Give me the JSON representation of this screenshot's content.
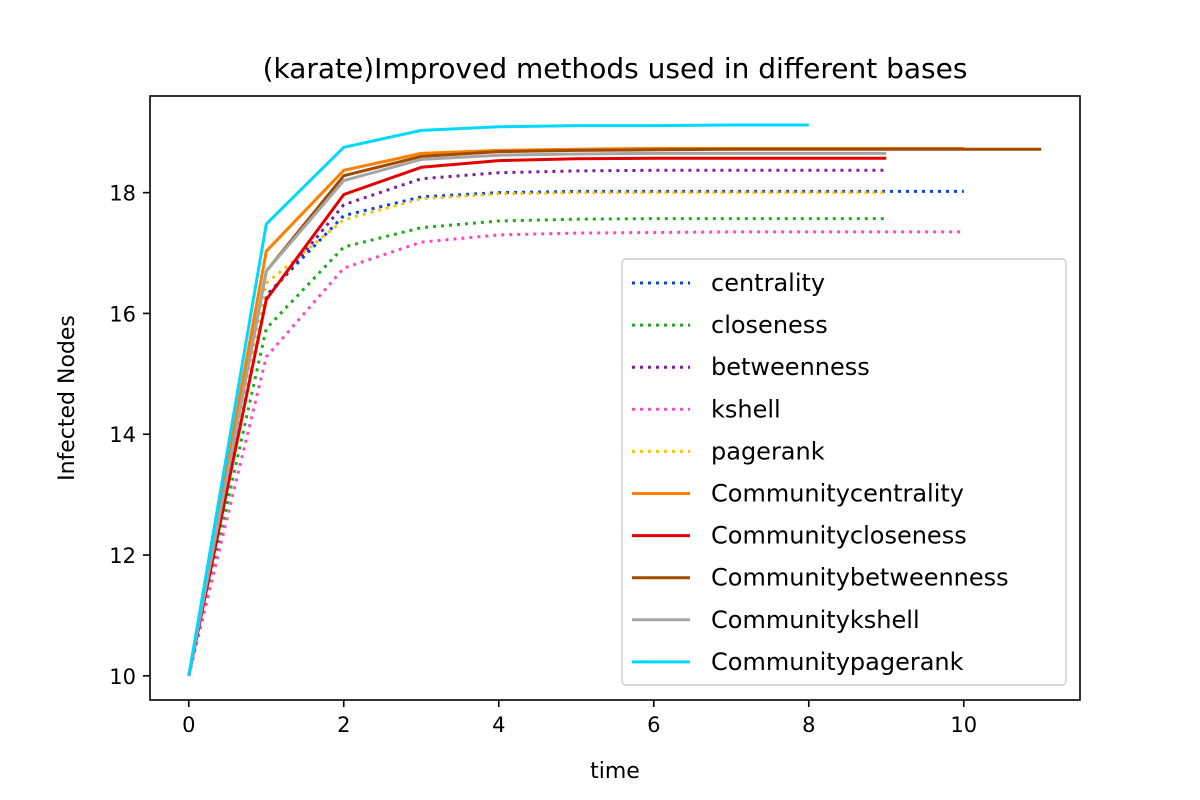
{
  "chart_data": {
    "type": "line",
    "title": "(karate)Improved methods used in different bases",
    "xlabel": "time",
    "ylabel": "Infected Nodes",
    "xlim": [
      -0.5,
      11.5
    ],
    "ylim": [
      9.6,
      19.6
    ],
    "xticks": [
      0,
      2,
      4,
      6,
      8,
      10
    ],
    "yticks": [
      10,
      12,
      14,
      16,
      18
    ],
    "grid": false,
    "legend_position": "lower-right",
    "series": [
      {
        "name": "centrality",
        "color": "#0343df",
        "style": "dotted",
        "x": [
          0,
          1,
          2,
          3,
          4,
          5,
          6,
          7,
          8,
          9,
          10
        ],
        "y": [
          10,
          16.3,
          17.62,
          17.93,
          18.0,
          18.02,
          18.02,
          18.02,
          18.02,
          18.02,
          18.02
        ]
      },
      {
        "name": "closeness",
        "color": "#15b01a",
        "style": "dotted",
        "x": [
          0,
          1,
          2,
          3,
          4,
          5,
          6,
          7,
          8,
          9
        ],
        "y": [
          10,
          15.75,
          17.1,
          17.42,
          17.53,
          17.56,
          17.57,
          17.57,
          17.57,
          17.57
        ]
      },
      {
        "name": "betweenness",
        "color": "#7e1e9c",
        "style": "dotted",
        "x": [
          0,
          1,
          2,
          3,
          4,
          5,
          6,
          7,
          8,
          9
        ],
        "y": [
          10,
          16.25,
          17.8,
          18.23,
          18.33,
          18.36,
          18.37,
          18.37,
          18.37,
          18.37
        ]
      },
      {
        "name": "kshell",
        "color": "#ff46c8",
        "style": "dotted",
        "x": [
          0,
          1,
          2,
          3,
          4,
          5,
          6,
          7,
          8,
          9,
          10
        ],
        "y": [
          10,
          15.28,
          16.75,
          17.18,
          17.3,
          17.33,
          17.34,
          17.35,
          17.35,
          17.35,
          17.35
        ]
      },
      {
        "name": "pagerank",
        "color": "#ffc000",
        "style": "dotted",
        "x": [
          0,
          1,
          2,
          3,
          4,
          5,
          6,
          7,
          8,
          9
        ],
        "y": [
          10,
          16.5,
          17.55,
          17.9,
          17.98,
          18.0,
          18.0,
          18.0,
          18.0,
          18.0
        ]
      },
      {
        "name": "Communitycentrality",
        "color": "#ff7f00",
        "style": "solid",
        "x": [
          0,
          1,
          2,
          3,
          4,
          5,
          6,
          7,
          8,
          9,
          10
        ],
        "y": [
          10,
          17.03,
          18.37,
          18.65,
          18.7,
          18.72,
          18.73,
          18.73,
          18.73,
          18.73,
          18.73
        ]
      },
      {
        "name": "Communitycloseness",
        "color": "#e50000",
        "style": "solid",
        "x": [
          0,
          1,
          2,
          3,
          4,
          5,
          6,
          7,
          8,
          9
        ],
        "y": [
          10,
          16.23,
          17.97,
          18.42,
          18.53,
          18.56,
          18.57,
          18.57,
          18.57,
          18.57
        ]
      },
      {
        "name": "Communitybetweenness",
        "color": "#a04b00",
        "style": "solid",
        "x": [
          0,
          1,
          2,
          3,
          4,
          5,
          6,
          7,
          8,
          9,
          10,
          11
        ],
        "y": [
          10,
          16.7,
          18.28,
          18.6,
          18.68,
          18.7,
          18.71,
          18.72,
          18.72,
          18.72,
          18.72,
          18.72
        ]
      },
      {
        "name": "Communitykshell",
        "color": "#a5a5a5",
        "style": "solid",
        "x": [
          0,
          1,
          2,
          3,
          4,
          5,
          6,
          7,
          8,
          9
        ],
        "y": [
          10,
          16.7,
          18.2,
          18.55,
          18.62,
          18.64,
          18.65,
          18.65,
          18.65,
          18.65
        ]
      },
      {
        "name": "Communitypagerank",
        "color": "#00d8ff",
        "style": "solid",
        "x": [
          0,
          1,
          2,
          3,
          4,
          5,
          6,
          7,
          8
        ],
        "y": [
          10,
          17.48,
          18.75,
          19.03,
          19.09,
          19.11,
          19.11,
          19.12,
          19.12
        ]
      }
    ]
  }
}
